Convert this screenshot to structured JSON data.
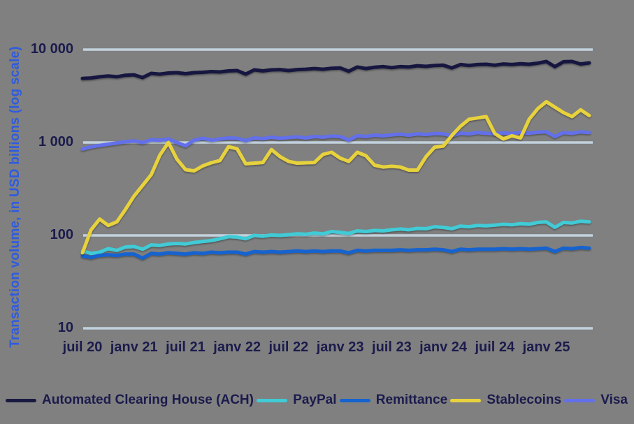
{
  "figure": {
    "background": "#808080",
    "grid_color": "#C2D2DE",
    "text_color": "#1B1B4D",
    "y_axis": {
      "title": "Transaction volume, in USD billions (log scale)",
      "title_color": "#2E5BE0",
      "scale": "log",
      "tick_labels": [
        "10 000",
        "1 000",
        "100",
        "10"
      ],
      "tick_values": [
        10000,
        1000,
        100,
        10
      ]
    },
    "x_axis": {
      "tick_labels": [
        "juil 20",
        "janv 21",
        "juil 21",
        "janv 22",
        "juil 22",
        "janv 23",
        "juil 23",
        "janv 24",
        "juil 24",
        "janv 25"
      ],
      "tick_month_indices": [
        0,
        6,
        12,
        18,
        24,
        30,
        36,
        42,
        48,
        54
      ]
    }
  },
  "legend": [
    {
      "label": "Automated Clearing House (ACH)",
      "color": "#191940"
    },
    {
      "label": "PayPal",
      "color": "#41CBD6"
    },
    {
      "label": "Remittance",
      "color": "#1563CF"
    },
    {
      "label": "Stablecoins",
      "color": "#E7D23E"
    },
    {
      "label": "Visa",
      "color": "#6370EA"
    }
  ],
  "chart_data": {
    "type": "line",
    "title": "",
    "xlabel": "",
    "ylabel": "Transaction volume, in USD billions (log scale)",
    "y_scale": "log",
    "ylim": [
      10,
      10000
    ],
    "grid": "horizontal",
    "legend_position": "bottom",
    "x": [
      "2020-07",
      "2020-08",
      "2020-09",
      "2020-10",
      "2020-11",
      "2020-12",
      "2021-01",
      "2021-02",
      "2021-03",
      "2021-04",
      "2021-05",
      "2021-06",
      "2021-07",
      "2021-08",
      "2021-09",
      "2021-10",
      "2021-11",
      "2021-12",
      "2022-01",
      "2022-02",
      "2022-03",
      "2022-04",
      "2022-05",
      "2022-06",
      "2022-07",
      "2022-08",
      "2022-09",
      "2022-10",
      "2022-11",
      "2022-12",
      "2023-01",
      "2023-02",
      "2023-03",
      "2023-04",
      "2023-05",
      "2023-06",
      "2023-07",
      "2023-08",
      "2023-09",
      "2023-10",
      "2023-11",
      "2023-12",
      "2024-01",
      "2024-02",
      "2024-03",
      "2024-04",
      "2024-05",
      "2024-06",
      "2024-07",
      "2024-08",
      "2024-09",
      "2024-10",
      "2024-11",
      "2024-12",
      "2025-01",
      "2025-02",
      "2025-03",
      "2025-04",
      "2025-05",
      "2025-06"
    ],
    "x_tick_labels": [
      "juil 20",
      "janv 21",
      "juil 21",
      "janv 22",
      "juil 22",
      "janv 23",
      "juil 23",
      "janv 24",
      "juil 24",
      "janv 25"
    ],
    "series": [
      {
        "name": "Automated Clearing House (ACH)",
        "color": "#191940",
        "values": [
          4900,
          4950,
          5100,
          5200,
          5100,
          5300,
          5350,
          5000,
          5550,
          5450,
          5600,
          5650,
          5500,
          5650,
          5700,
          5800,
          5750,
          5900,
          5950,
          5450,
          6050,
          5900,
          6050,
          6100,
          5950,
          6100,
          6150,
          6250,
          6150,
          6300,
          6350,
          5850,
          6500,
          6250,
          6450,
          6550,
          6400,
          6550,
          6500,
          6700,
          6600,
          6750,
          6800,
          6350,
          6900,
          6750,
          6900,
          6950,
          6800,
          7000,
          6900,
          7050,
          6950,
          7150,
          7450,
          6550,
          7400,
          7450,
          7000,
          7200
        ]
      },
      {
        "name": "PayPal",
        "color": "#41CBD6",
        "values": [
          68,
          64,
          66,
          72,
          69,
          75,
          76,
          71,
          79,
          78,
          81,
          82,
          81,
          84,
          86,
          88,
          92,
          97,
          96,
          92,
          100,
          98,
          101,
          100,
          102,
          104,
          103,
          106,
          104,
          110,
          108,
          105,
          112,
          110,
          113,
          112,
          115,
          117,
          115,
          119,
          118,
          124,
          122,
          118,
          126,
          124,
          128,
          127,
          129,
          132,
          130,
          134,
          132,
          138,
          140,
          122,
          138,
          136,
          142,
          140
        ]
      },
      {
        "name": "Remittance",
        "color": "#1563CF",
        "values": [
          60,
          58,
          61,
          62,
          61,
          63,
          63,
          57,
          64,
          63,
          65,
          64,
          63,
          65,
          64,
          66,
          65,
          66,
          66,
          63,
          67,
          66,
          67,
          66,
          67,
          68,
          67,
          68,
          67,
          68,
          68,
          65,
          69,
          68,
          69,
          69,
          69,
          70,
          69,
          70,
          70,
          71,
          70,
          67,
          71,
          70,
          71,
          71,
          71,
          72,
          71,
          72,
          71,
          72,
          73,
          67,
          73,
          72,
          74,
          73
        ]
      },
      {
        "name": "Visa",
        "color": "#6370EA",
        "values": [
          850,
          900,
          930,
          960,
          990,
          1020,
          1040,
          1000,
          1070,
          1060,
          1090,
          1000,
          920,
          1060,
          1110,
          1060,
          1090,
          1120,
          1110,
          1050,
          1120,
          1100,
          1140,
          1110,
          1130,
          1150,
          1120,
          1160,
          1140,
          1170,
          1160,
          1060,
          1180,
          1160,
          1200,
          1180,
          1210,
          1230,
          1200,
          1240,
          1220,
          1250,
          1240,
          1180,
          1260,
          1240,
          1280,
          1260,
          1240,
          1270,
          1250,
          1280,
          1260,
          1290,
          1300,
          1160,
          1280,
          1260,
          1300,
          1280
        ]
      },
      {
        "name": "Stablecoins",
        "color": "#E7D23E",
        "values": [
          65,
          115,
          150,
          128,
          140,
          190,
          265,
          345,
          450,
          730,
          1000,
          660,
          510,
          495,
          560,
          605,
          640,
          900,
          855,
          590,
          600,
          610,
          840,
          705,
          625,
          600,
          605,
          610,
          745,
          785,
          680,
          625,
          785,
          720,
          570,
          545,
          555,
          545,
          505,
          505,
          705,
          890,
          915,
          1190,
          1495,
          1780,
          1840,
          1900,
          1250,
          1090,
          1180,
          1120,
          1780,
          2310,
          2750,
          2400,
          2100,
          1900,
          2250,
          1950
        ]
      }
    ],
    "legend_order": [
      "Automated Clearing House (ACH)",
      "PayPal",
      "Remittance",
      "Stablecoins",
      "Visa"
    ]
  }
}
